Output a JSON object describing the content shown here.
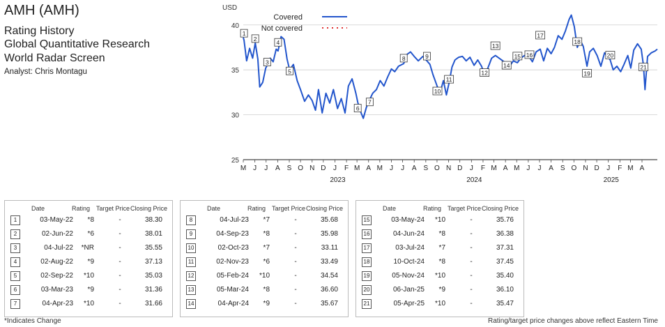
{
  "header": {
    "title": "AMH (AMH)",
    "subtitle1": "Rating History",
    "subtitle2": "Global Quantitative Research",
    "subtitle3": "World Radar Screen",
    "analyst": "Analyst: Chris Montagu"
  },
  "chart_data": {
    "type": "line",
    "ylabel": "USD",
    "ylim": [
      25,
      42
    ],
    "yticks": [
      25,
      30,
      35,
      40
    ],
    "xlim": [
      "2022-05-01",
      "2025-05-12"
    ],
    "month_ticks": [
      "M",
      "J",
      "J",
      "A",
      "S",
      "O",
      "N",
      "D",
      "J",
      "F",
      "M",
      "A",
      "M",
      "J",
      "J",
      "A",
      "S",
      "O",
      "N",
      "D",
      "J",
      "F",
      "M",
      "A",
      "M",
      "J",
      "J",
      "A",
      "S",
      "O",
      "N",
      "D",
      "J",
      "F",
      "M",
      "A"
    ],
    "year_labels": [
      {
        "label": "2023",
        "x": "2023-01-01"
      },
      {
        "label": "2024",
        "x": "2024-01-01"
      },
      {
        "label": "2025",
        "x": "2025-01-01"
      }
    ],
    "grid": "horizontal",
    "legend": {
      "position": "top-center",
      "items": [
        {
          "label": "Covered",
          "style": "solid",
          "color": "#2255cc"
        },
        {
          "label": "Not covered",
          "style": "dotted",
          "color": "#e03030"
        }
      ]
    },
    "series": [
      {
        "name": "Covered",
        "color": "#2255cc",
        "points": [
          [
            "2022-05-01",
            38.6
          ],
          [
            "2022-05-03",
            38.3
          ],
          [
            "2022-05-10",
            36.0
          ],
          [
            "2022-05-18",
            37.4
          ],
          [
            "2022-05-26",
            36.3
          ],
          [
            "2022-06-02",
            38.0
          ],
          [
            "2022-06-09",
            36.2
          ],
          [
            "2022-06-14",
            33.1
          ],
          [
            "2022-06-22",
            33.6
          ],
          [
            "2022-06-30",
            35.2
          ],
          [
            "2022-07-04",
            35.5
          ],
          [
            "2022-07-12",
            36.3
          ],
          [
            "2022-07-20",
            35.9
          ],
          [
            "2022-07-28",
            37.3
          ],
          [
            "2022-08-02",
            37.1
          ],
          [
            "2022-08-10",
            38.7
          ],
          [
            "2022-08-18",
            38.4
          ],
          [
            "2022-08-26",
            36.2
          ],
          [
            "2022-09-02",
            35.0
          ],
          [
            "2022-09-12",
            35.6
          ],
          [
            "2022-09-22",
            33.8
          ],
          [
            "2022-10-01",
            32.8
          ],
          [
            "2022-10-12",
            31.5
          ],
          [
            "2022-10-22",
            32.2
          ],
          [
            "2022-11-01",
            31.6
          ],
          [
            "2022-11-10",
            30.5
          ],
          [
            "2022-11-18",
            32.8
          ],
          [
            "2022-11-28",
            30.2
          ],
          [
            "2022-12-08",
            32.4
          ],
          [
            "2022-12-18",
            31.3
          ],
          [
            "2022-12-28",
            32.8
          ],
          [
            "2023-01-08",
            30.7
          ],
          [
            "2023-01-18",
            31.8
          ],
          [
            "2023-01-28",
            30.2
          ],
          [
            "2023-02-06",
            33.2
          ],
          [
            "2023-02-16",
            34.0
          ],
          [
            "2023-02-26",
            32.4
          ],
          [
            "2023-03-03",
            31.4
          ],
          [
            "2023-03-10",
            30.4
          ],
          [
            "2023-03-18",
            29.6
          ],
          [
            "2023-03-26",
            30.8
          ],
          [
            "2023-04-04",
            31.7
          ],
          [
            "2023-04-12",
            32.4
          ],
          [
            "2023-04-22",
            32.8
          ],
          [
            "2023-05-02",
            33.8
          ],
          [
            "2023-05-12",
            33.2
          ],
          [
            "2023-05-22",
            34.2
          ],
          [
            "2023-06-01",
            35.1
          ],
          [
            "2023-06-10",
            34.8
          ],
          [
            "2023-06-20",
            35.4
          ],
          [
            "2023-07-04",
            35.7
          ],
          [
            "2023-07-12",
            36.7
          ],
          [
            "2023-07-22",
            37.0
          ],
          [
            "2023-08-01",
            36.5
          ],
          [
            "2023-08-12",
            36.0
          ],
          [
            "2023-08-24",
            36.5
          ],
          [
            "2023-09-04",
            36.0
          ],
          [
            "2023-09-12",
            35.6
          ],
          [
            "2023-09-20",
            34.5
          ],
          [
            "2023-10-02",
            33.1
          ],
          [
            "2023-10-10",
            32.6
          ],
          [
            "2023-10-18",
            33.8
          ],
          [
            "2023-10-26",
            32.2
          ],
          [
            "2023-11-02",
            33.5
          ],
          [
            "2023-11-10",
            35.3
          ],
          [
            "2023-11-18",
            36.1
          ],
          [
            "2023-11-28",
            36.4
          ],
          [
            "2023-12-08",
            36.5
          ],
          [
            "2023-12-18",
            36.0
          ],
          [
            "2023-12-28",
            36.4
          ],
          [
            "2024-01-08",
            35.5
          ],
          [
            "2024-01-18",
            36.1
          ],
          [
            "2024-01-28",
            35.4
          ],
          [
            "2024-02-05",
            34.5
          ],
          [
            "2024-02-14",
            35.2
          ],
          [
            "2024-02-24",
            36.3
          ],
          [
            "2024-03-05",
            36.6
          ],
          [
            "2024-03-15",
            36.3
          ],
          [
            "2024-03-25",
            36.0
          ],
          [
            "2024-04-04",
            35.7
          ],
          [
            "2024-04-12",
            35.4
          ],
          [
            "2024-04-22",
            36.0
          ],
          [
            "2024-05-03",
            35.8
          ],
          [
            "2024-05-12",
            36.3
          ],
          [
            "2024-05-22",
            36.6
          ],
          [
            "2024-06-04",
            36.4
          ],
          [
            "2024-06-12",
            35.9
          ],
          [
            "2024-06-22",
            37.0
          ],
          [
            "2024-07-03",
            37.3
          ],
          [
            "2024-07-12",
            36.0
          ],
          [
            "2024-07-22",
            37.4
          ],
          [
            "2024-08-01",
            36.8
          ],
          [
            "2024-08-10",
            37.5
          ],
          [
            "2024-08-20",
            38.8
          ],
          [
            "2024-08-30",
            38.4
          ],
          [
            "2024-09-08",
            39.3
          ],
          [
            "2024-09-18",
            40.6
          ],
          [
            "2024-09-24",
            41.1
          ],
          [
            "2024-10-02",
            39.8
          ],
          [
            "2024-10-10",
            37.5
          ],
          [
            "2024-10-18",
            38.3
          ],
          [
            "2024-10-26",
            37.6
          ],
          [
            "2024-11-05",
            35.4
          ],
          [
            "2024-11-12",
            37.0
          ],
          [
            "2024-11-22",
            37.4
          ],
          [
            "2024-12-02",
            36.6
          ],
          [
            "2024-12-12",
            35.4
          ],
          [
            "2024-12-22",
            36.9
          ],
          [
            "2025-01-06",
            36.1
          ],
          [
            "2025-01-14",
            35.0
          ],
          [
            "2025-01-24",
            35.4
          ],
          [
            "2025-02-03",
            34.8
          ],
          [
            "2025-02-12",
            35.6
          ],
          [
            "2025-02-22",
            36.6
          ],
          [
            "2025-03-02",
            35.2
          ],
          [
            "2025-03-10",
            37.2
          ],
          [
            "2025-03-20",
            37.9
          ],
          [
            "2025-03-30",
            37.3
          ],
          [
            "2025-04-05",
            35.5
          ],
          [
            "2025-04-09",
            32.8
          ],
          [
            "2025-04-16",
            36.5
          ],
          [
            "2025-04-26",
            36.9
          ],
          [
            "2025-05-06",
            37.1
          ],
          [
            "2025-05-12",
            37.3
          ]
        ]
      }
    ],
    "rating_markers": [
      {
        "n": "1",
        "date": "2022-05-03",
        "price": 38.3
      },
      {
        "n": "2",
        "date": "2022-06-02",
        "price": 38.01
      },
      {
        "n": "3",
        "date": "2022-07-04",
        "price": 35.55
      },
      {
        "n": "4",
        "date": "2022-08-02",
        "price": 37.13
      },
      {
        "n": "5",
        "date": "2022-09-02",
        "price": 35.03
      },
      {
        "n": "6",
        "date": "2023-03-03",
        "price": 31.36
      },
      {
        "n": "7",
        "date": "2023-04-04",
        "price": 31.66
      },
      {
        "n": "8",
        "date": "2023-07-04",
        "price": 35.68
      },
      {
        "n": "9",
        "date": "2023-09-04",
        "price": 35.98
      },
      {
        "n": "10",
        "date": "2023-10-02",
        "price": 33.11
      },
      {
        "n": "11",
        "date": "2023-11-02",
        "price": 33.49
      },
      {
        "n": "12",
        "date": "2024-02-05",
        "price": 34.54
      },
      {
        "n": "13",
        "date": "2024-03-05",
        "price": 36.6
      },
      {
        "n": "14",
        "date": "2024-04-04",
        "price": 35.67
      },
      {
        "n": "15",
        "date": "2024-05-03",
        "price": 35.76
      },
      {
        "n": "16",
        "date": "2024-06-04",
        "price": 36.38
      },
      {
        "n": "17",
        "date": "2024-07-03",
        "price": 37.31
      },
      {
        "n": "18",
        "date": "2024-10-10",
        "price": 37.45
      },
      {
        "n": "19",
        "date": "2024-11-05",
        "price": 35.4
      },
      {
        "n": "20",
        "date": "2025-01-06",
        "price": 36.1
      },
      {
        "n": "21",
        "date": "2025-04-05",
        "price": 35.47
      }
    ]
  },
  "table": {
    "headers": {
      "date": "Date",
      "rating": "Rating",
      "target": "Target Price",
      "close": "Closing Price"
    },
    "groups": [
      [
        {
          "n": "1",
          "date": "03-May-22",
          "rating": "*8",
          "target": "-",
          "close": "38.30"
        },
        {
          "n": "2",
          "date": "02-Jun-22",
          "rating": "*6",
          "target": "-",
          "close": "38.01"
        },
        {
          "n": "3",
          "date": "04-Jul-22",
          "rating": "*NR",
          "target": "-",
          "close": "35.55"
        },
        {
          "n": "4",
          "date": "02-Aug-22",
          "rating": "*9",
          "target": "-",
          "close": "37.13"
        },
        {
          "n": "5",
          "date": "02-Sep-22",
          "rating": "*10",
          "target": "-",
          "close": "35.03"
        },
        {
          "n": "6",
          "date": "03-Mar-23",
          "rating": "*9",
          "target": "-",
          "close": "31.36"
        },
        {
          "n": "7",
          "date": "04-Apr-23",
          "rating": "*10",
          "target": "-",
          "close": "31.66"
        }
      ],
      [
        {
          "n": "8",
          "date": "04-Jul-23",
          "rating": "*7",
          "target": "-",
          "close": "35.68"
        },
        {
          "n": "9",
          "date": "04-Sep-23",
          "rating": "*8",
          "target": "-",
          "close": "35.98"
        },
        {
          "n": "10",
          "date": "02-Oct-23",
          "rating": "*7",
          "target": "-",
          "close": "33.11"
        },
        {
          "n": "11",
          "date": "02-Nov-23",
          "rating": "*6",
          "target": "-",
          "close": "33.49"
        },
        {
          "n": "12",
          "date": "05-Feb-24",
          "rating": "*10",
          "target": "-",
          "close": "34.54"
        },
        {
          "n": "13",
          "date": "05-Mar-24",
          "rating": "*8",
          "target": "-",
          "close": "36.60"
        },
        {
          "n": "14",
          "date": "04-Apr-24",
          "rating": "*9",
          "target": "-",
          "close": "35.67"
        }
      ],
      [
        {
          "n": "15",
          "date": "03-May-24",
          "rating": "*10",
          "target": "-",
          "close": "35.76"
        },
        {
          "n": "16",
          "date": "04-Jun-24",
          "rating": "*8",
          "target": "-",
          "close": "36.38"
        },
        {
          "n": "17",
          "date": "03-Jul-24",
          "rating": "*7",
          "target": "-",
          "close": "37.31"
        },
        {
          "n": "18",
          "date": "10-Oct-24",
          "rating": "*8",
          "target": "-",
          "close": "37.45"
        },
        {
          "n": "19",
          "date": "05-Nov-24",
          "rating": "*10",
          "target": "-",
          "close": "35.40"
        },
        {
          "n": "20",
          "date": "06-Jan-25",
          "rating": "*9",
          "target": "-",
          "close": "36.10"
        },
        {
          "n": "21",
          "date": "05-Apr-25",
          "rating": "*10",
          "target": "-",
          "close": "35.47"
        }
      ]
    ]
  },
  "footer": {
    "left": "*Indicates Change",
    "right": "Rating/target price changes above reflect Eastern Time"
  }
}
